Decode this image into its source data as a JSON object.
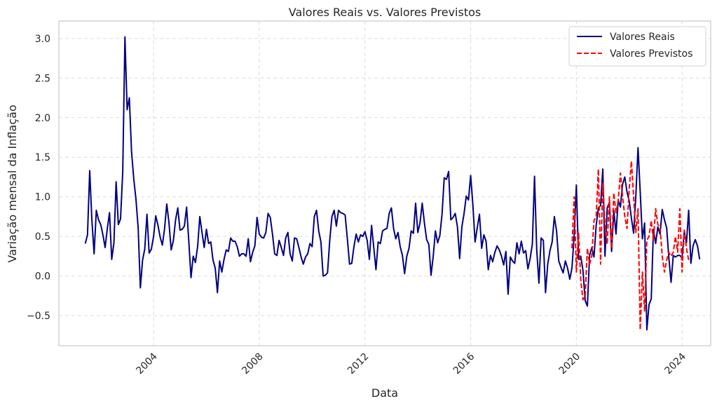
{
  "chart_data": {
    "type": "line",
    "title": "Valores Reais vs. Valores Previstos",
    "xlabel": "Data",
    "ylabel": "Variação mensal da Inflação",
    "x_ticks": [
      "2004",
      "2008",
      "2012",
      "2016",
      "2020",
      "2024"
    ],
    "y_ticks": [
      "−0.5",
      "0.0",
      "0.5",
      "1.0",
      "1.5",
      "2.0",
      "2.5",
      "3.0"
    ],
    "xlim": [
      "2000-06",
      "2025-02"
    ],
    "ylim": [
      -0.88,
      3.22
    ],
    "grid": true,
    "legend_position": "top-right",
    "colors": {
      "actual": "#000080",
      "predicted": "#ff0000",
      "grid": "#dcdcdc",
      "frame": "#c8c8c8"
    },
    "series": [
      {
        "name": "Valores Reais",
        "style": "solid",
        "start": "2001-06",
        "values": [
          0.41,
          0.52,
          1.33,
          0.7,
          0.28,
          0.83,
          0.71,
          0.65,
          0.52,
          0.36,
          0.6,
          0.8,
          0.21,
          0.42,
          1.19,
          0.65,
          0.72,
          1.31,
          3.02,
          2.1,
          2.25,
          1.57,
          1.23,
          0.97,
          0.61,
          -0.15,
          0.2,
          0.34,
          0.78,
          0.29,
          0.34,
          0.5,
          0.76,
          0.64,
          0.49,
          0.39,
          0.6,
          0.91,
          0.67,
          0.33,
          0.45,
          0.71,
          0.86,
          0.58,
          0.59,
          0.63,
          0.87,
          0.44,
          -0.02,
          0.25,
          0.17,
          0.37,
          0.75,
          0.55,
          0.36,
          0.59,
          0.41,
          0.43,
          0.2,
          0.1,
          -0.21,
          0.19,
          0.05,
          0.21,
          0.33,
          0.31,
          0.48,
          0.44,
          0.44,
          0.37,
          0.25,
          0.28,
          0.28,
          0.25,
          0.47,
          0.18,
          0.3,
          0.38,
          0.74,
          0.53,
          0.49,
          0.48,
          0.55,
          0.79,
          0.74,
          0.53,
          0.28,
          0.26,
          0.45,
          0.36,
          0.26,
          0.48,
          0.55,
          0.28,
          0.19,
          0.48,
          0.47,
          0.36,
          0.24,
          0.15,
          0.24,
          0.28,
          0.41,
          0.37,
          0.75,
          0.83,
          0.57,
          0.43,
          0.0,
          0.01,
          0.04,
          0.45,
          0.75,
          0.83,
          0.63,
          0.83,
          0.8,
          0.79,
          0.77,
          0.47,
          0.15,
          0.16,
          0.37,
          0.53,
          0.43,
          0.52,
          0.5,
          0.56,
          0.45,
          0.21,
          0.64,
          0.36,
          0.08,
          0.43,
          0.41,
          0.57,
          0.59,
          0.6,
          0.79,
          0.86,
          0.6,
          0.47,
          0.55,
          0.37,
          0.26,
          0.03,
          0.25,
          0.35,
          0.57,
          0.54,
          0.92,
          0.55,
          0.67,
          0.92,
          0.67,
          0.46,
          0.4,
          0.01,
          0.25,
          0.57,
          0.42,
          0.51,
          0.78,
          1.24,
          1.22,
          1.32,
          0.71,
          0.74,
          0.79,
          0.62,
          0.22,
          0.62,
          0.79,
          1.01,
          0.96,
          1.27,
          0.9,
          0.43,
          0.61,
          0.78,
          0.35,
          0.52,
          0.44,
          0.08,
          0.26,
          0.18,
          0.3,
          0.38,
          0.33,
          0.25,
          0.14,
          0.31,
          -0.23,
          0.24,
          0.19,
          0.16,
          0.42,
          0.28,
          0.44,
          0.29,
          0.32,
          0.09,
          0.22,
          0.4,
          1.26,
          0.33,
          -0.09,
          0.48,
          0.45,
          -0.21,
          0.15,
          0.32,
          0.43,
          0.75,
          0.57,
          0.19,
          0.11,
          0.04,
          0.19,
          0.1,
          -0.04,
          0.1,
          0.51,
          1.15,
          0.21,
          0.25,
          0.07,
          -0.31,
          -0.38,
          0.26,
          0.36,
          0.24,
          0.64,
          0.86,
          0.89,
          1.35,
          0.25,
          0.86,
          0.93,
          0.31,
          0.83,
          0.53,
          0.96,
          0.87,
          1.16,
          1.25,
          1.06,
          0.95,
          0.73,
          0.54,
          1.01,
          1.62,
          1.06,
          0.47,
          0.67,
          -0.68,
          -0.36,
          -0.29,
          0.59,
          0.41,
          0.62,
          0.53,
          0.84,
          0.71,
          0.61,
          0.23,
          -0.08,
          0.26,
          0.24,
          0.26,
          0.26,
          0.23,
          0.56,
          0.42,
          0.83,
          0.16,
          0.38,
          0.46,
          0.38,
          0.21
        ]
      },
      {
        "name": "Valores Previstos",
        "style": "dashed",
        "start": "2019-11",
        "values": [
          0.35,
          1.0,
          0.05,
          0.55,
          -0.05,
          -0.3,
          -0.25,
          0.35,
          0.15,
          0.25,
          0.7,
          0.75,
          1.35,
          0.15,
          1.18,
          0.65,
          0.4,
          1.0,
          0.35,
          1.05,
          0.8,
          0.95,
          1.3,
          1.0,
          0.75,
          0.6,
          1.1,
          1.45,
          1.0,
          0.55,
          0.85,
          -0.68,
          0.05,
          -0.45,
          0.45,
          0.5,
          0.7,
          0.45,
          0.85,
          0.65,
          0.62,
          0.25,
          0.05,
          0.2,
          0.3,
          0.25,
          0.3,
          0.5,
          0.3,
          0.85,
          0.05,
          0.58,
          0.35,
          0.2
        ]
      }
    ]
  }
}
